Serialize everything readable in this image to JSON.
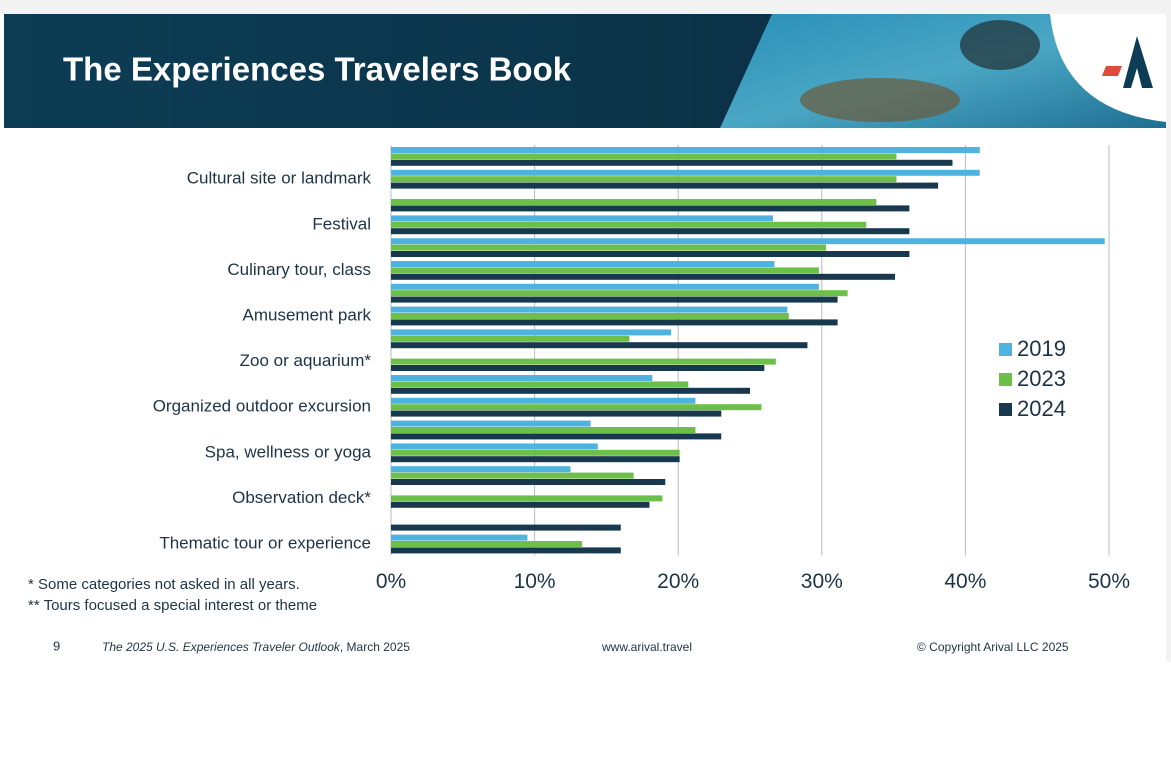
{
  "header": {
    "title": "The Experiences Travelers Book"
  },
  "chart_data": {
    "type": "hbar",
    "categories": [
      null,
      "Cultural site or landmark",
      null,
      "Festival",
      null,
      "Culinary tour, class",
      null,
      "Amusement park",
      null,
      "Zoo or aquarium*",
      null,
      "Organized outdoor excursion",
      null,
      "Spa, wellness or yoga",
      null,
      "Observation deck*",
      null,
      "Thematic tour or experience"
    ],
    "series": [
      {
        "name": "2019",
        "color": "#4fb3e0",
        "values": [
          41.0,
          41.0,
          null,
          26.6,
          49.7,
          26.7,
          29.8,
          27.6,
          19.5,
          null,
          18.2,
          21.2,
          13.9,
          14.4,
          12.5,
          null,
          null,
          9.5
        ]
      },
      {
        "name": "2023",
        "color": "#6cc04a",
        "values": [
          35.2,
          35.2,
          33.8,
          33.1,
          30.3,
          29.8,
          31.8,
          27.7,
          16.6,
          26.8,
          20.7,
          25.8,
          21.2,
          20.1,
          16.9,
          18.9,
          null,
          13.3
        ]
      },
      {
        "name": "2024",
        "color": "#17384d",
        "values": [
          39.1,
          38.1,
          36.1,
          36.1,
          36.1,
          35.1,
          31.1,
          31.1,
          29.0,
          26.0,
          25.0,
          23.0,
          23.0,
          20.1,
          19.1,
          18.0,
          16.0,
          16.0
        ]
      }
    ],
    "xlim": [
      0,
      50
    ],
    "xticks": [
      {
        "value": 0,
        "label": "0%"
      },
      {
        "value": 10,
        "label": "10%"
      },
      {
        "value": 20,
        "label": "20%"
      },
      {
        "value": 30,
        "label": "30%"
      },
      {
        "value": 40,
        "label": "40%"
      },
      {
        "value": 50,
        "label": "50%"
      }
    ],
    "grid": true,
    "legend": "right"
  },
  "notes": [
    "*   Some categories not asked in all years.",
    "** Tours focused a special interest or theme"
  ],
  "footer": {
    "page": "9",
    "publication": "The 2025 U.S. Experiences Traveler Outlook",
    "date": ", March 2025",
    "website": "www.arival.travel",
    "copyright": "© Copyright Arival LLC 2025"
  }
}
